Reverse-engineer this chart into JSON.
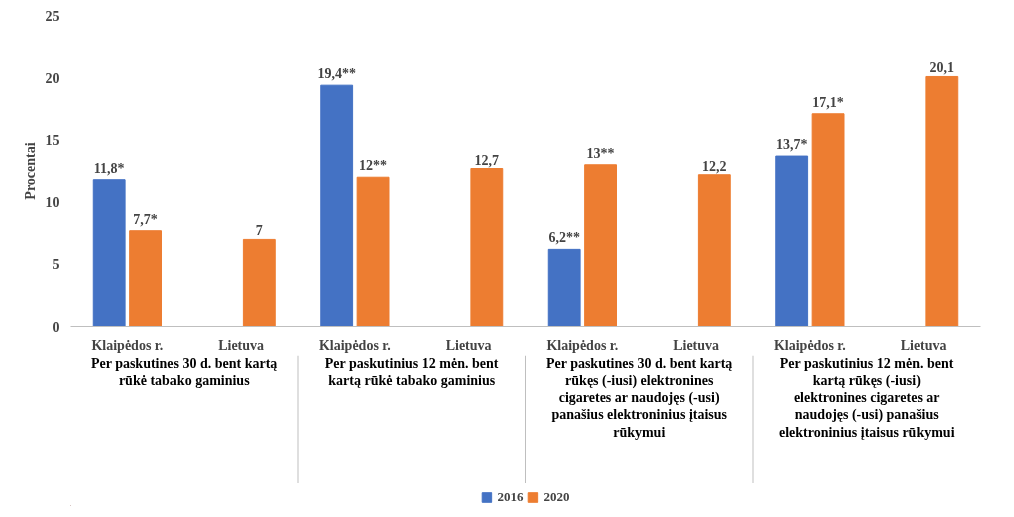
{
  "chart_data": {
    "type": "bar",
    "ylabel": "Procentai",
    "categories": [
      "Klaipėdos r.",
      "Lietuva",
      "Klaipėdos r.",
      "Lietuva",
      "Klaipėdos r.",
      "Lietuva",
      "Klaipėdos r.",
      "Lietuva"
    ],
    "series": [
      {
        "name": "2016",
        "color": "#4472c4",
        "values": [
          11.8,
          null,
          19.4,
          null,
          6.2,
          null,
          13.7,
          null
        ],
        "value_labels": [
          "11,8*",
          null,
          "19,4**",
          null,
          "6,2**",
          null,
          "13,7*",
          null
        ]
      },
      {
        "name": "2020",
        "color": "#ed7d31",
        "values": [
          7.7,
          7,
          12,
          12.7,
          13,
          12.2,
          17.1,
          20.1
        ],
        "value_labels": [
          "7,7*",
          "7",
          "12**",
          "12,7",
          "13**",
          "12,2",
          "17,1*",
          "20,1"
        ]
      }
    ],
    "annotations": [
      "Per paskutines 30 d. bent kartą rūkė tabako gaminius",
      "Per paskutinius 12 mėn. bent kartą rūkė tabako gaminius",
      "Per paskutines 30 d. bent kartą rūkęs (-iusi) elektronines cigaretes ar naudojęs (-usi) panašius elektroninius įtaisus rūkymui",
      "Per paskutinius 12 mėn. bent kartą rūkęs (-iusi) elektronines cigaretes ar naudojęs (-usi) panašius elektroninius įtaisus rūkymui"
    ],
    "ylim": [
      0,
      25
    ],
    "yticks": [
      0,
      5,
      10,
      15,
      20,
      25
    ],
    "grid": false,
    "legend": "bottom"
  }
}
